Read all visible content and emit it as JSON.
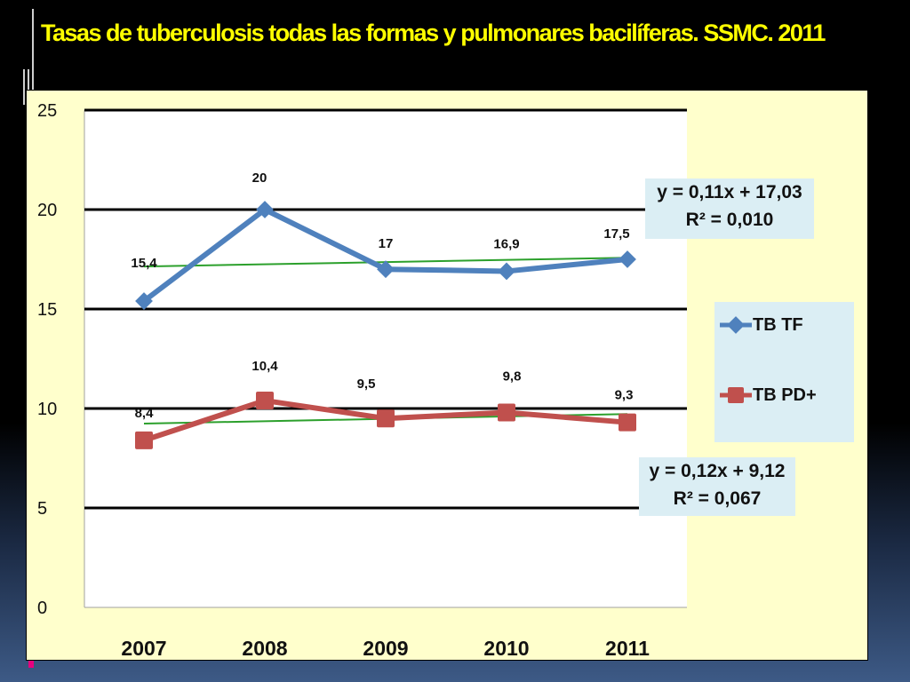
{
  "slide": {
    "title": "Tasas de tuberculosis todas las formas y pulmonares bacilíferas. SSMC. 2011"
  },
  "chart_data": {
    "type": "line",
    "title": "Tasas de tuberculosis todas las formas y pulmonares bacilíferas. SSMC. 2011",
    "categories": [
      "2007",
      "2008",
      "2009",
      "2010",
      "2011"
    ],
    "ylim": [
      0,
      25
    ],
    "yticks": [
      "0",
      "5",
      "10",
      "15",
      "20",
      "25"
    ],
    "grid": true,
    "legend_position": "right",
    "series": [
      {
        "name": "TB TF",
        "values": [
          15.4,
          20,
          17,
          16.9,
          17.5
        ],
        "labels": [
          "15,4",
          "20",
          "17",
          "16,9",
          "17,5"
        ],
        "color": "#4f81bd",
        "marker": "diamond",
        "trendline": {
          "slope": 0.11,
          "intercept": 17.03,
          "equation": "y = 0,11x + 17,03",
          "r2": "R² = 0,010"
        }
      },
      {
        "name": "TB PD+",
        "values": [
          8.4,
          10.4,
          9.5,
          9.8,
          9.3
        ],
        "labels": [
          "8,4",
          "10,4",
          "9,5",
          "9,8",
          "9,3"
        ],
        "color": "#c0504d",
        "marker": "square",
        "trendline": {
          "slope": 0.12,
          "intercept": 9.12,
          "equation": "y = 0,12x + 9,12",
          "r2": "R² = 0,067"
        }
      }
    ],
    "trendline_color": "#2ca02c"
  }
}
